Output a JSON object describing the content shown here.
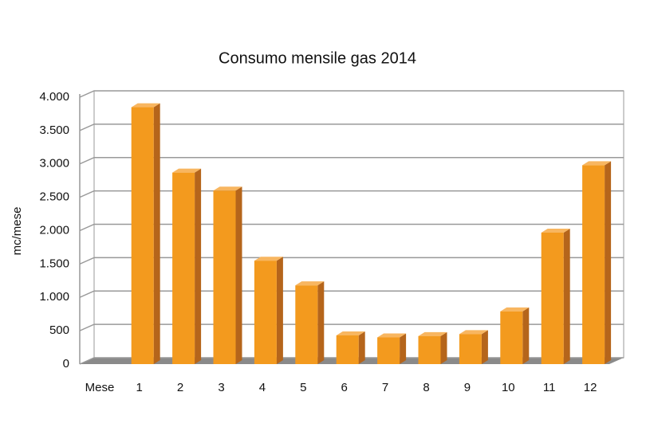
{
  "chart_data": {
    "type": "bar",
    "title": "Consumo mensile gas 2014",
    "x_label": "Mese",
    "y_label": "mc/mese",
    "categories": [
      "1",
      "2",
      "3",
      "4",
      "5",
      "6",
      "7",
      "8",
      "9",
      "10",
      "11",
      "12"
    ],
    "values": [
      3850,
      2870,
      2600,
      1550,
      1180,
      430,
      400,
      420,
      450,
      790,
      1970,
      2980
    ],
    "color": "#f39a1e",
    "ylim": [
      0,
      4000
    ],
    "yticks": [
      0,
      500,
      {
        "value": 1000,
        "label": "1.000"
      },
      {
        "value": 1500,
        "label": "1.500"
      },
      {
        "value": 2000,
        "label": "2.000"
      },
      {
        "value": 2500,
        "label": "2.500"
      },
      {
        "value": 3000,
        "label": "3.000"
      },
      {
        "value": 3500,
        "label": "3.500"
      },
      {
        "value": 4000,
        "label": "4.000"
      }
    ],
    "grid": true
  }
}
